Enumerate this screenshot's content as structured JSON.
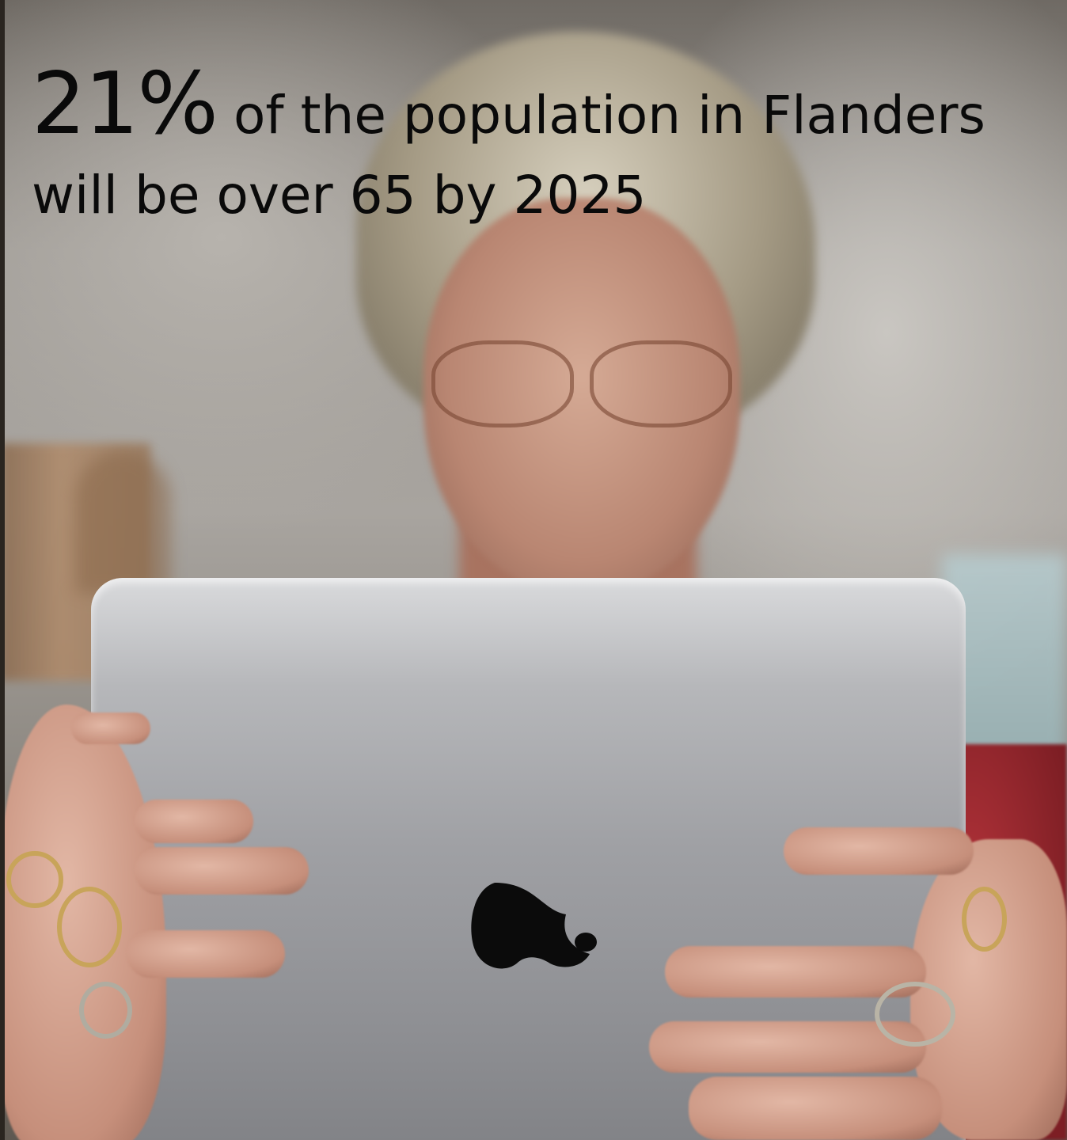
{
  "caption": {
    "stat": "21%",
    "line1_rest": " of the population in Flanders",
    "line2": "will be over 65 by 2025"
  },
  "colors": {
    "text": "#0a0a0a",
    "tablet": "#a3a4a8",
    "sweater": "#9e2a30"
  },
  "icons": [
    "apple-logo-icon"
  ]
}
